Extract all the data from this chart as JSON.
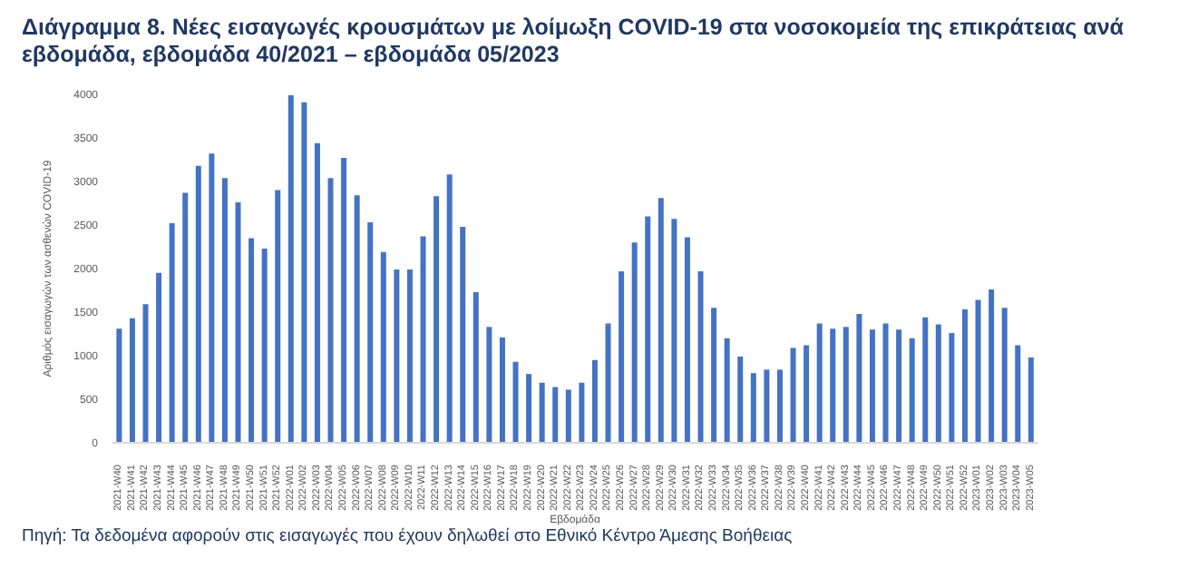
{
  "chart_data": {
    "type": "bar",
    "title": "Διάγραμμα 8. Νέες εισαγωγές κρουσμάτων με λοίμωξη COVID-19 στα νοσοκομεία της επικράτειας ανά εβδομάδα, εβδομάδα 40/2021 – εβδομάδα 05/2023",
    "xlabel": "Εβδομάδα",
    "ylabel": "Αριθμός εισαγωγών των ασθενών COVID-19",
    "annotations": [
      "Πηγή: Τα δεδομένα αφορούν στις εισαγωγές που έχουν δηλωθεί στο Εθνικό Κέντρο Άμεσης Βοήθειας"
    ],
    "categories": [
      "2021-W40",
      "2021-W41",
      "2021-W42",
      "2021-W43",
      "2021-W44",
      "2021-W45",
      "2021-W46",
      "2021-W47",
      "2021-W48",
      "2021-W49",
      "2021-W50",
      "2021-W51",
      "2021-W52",
      "2022-W01",
      "2022-W02",
      "2022-W03",
      "2022-W04",
      "2022-W05",
      "2022-W06",
      "2022-W07",
      "2022-W08",
      "2022-W09",
      "2022-W10",
      "2022-W11",
      "2022-W12",
      "2022-W13",
      "2022-W14",
      "2022-W15",
      "2022-W16",
      "2022-W17",
      "2022-W18",
      "2022-W19",
      "2022-W20",
      "2022-W21",
      "2022-W22",
      "2022-W23",
      "2022-W24",
      "2022-W25",
      "2022-W26",
      "2022-W27",
      "2022-W28",
      "2022-W29",
      "2022-W30",
      "2022-W31",
      "2022-W32",
      "2022-W33",
      "2022-W34",
      "2022-W35",
      "2022-W36",
      "2022-W37",
      "2022-W38",
      "2022-W39",
      "2022-W40",
      "2022-W41",
      "2022-W42",
      "2022-W43",
      "2022-W44",
      "2022-W45",
      "2022-W46",
      "2022-W47",
      "2022-W48",
      "2022-W49",
      "2022-W50",
      "2022-W51",
      "2022-W52",
      "2023-W01",
      "2023-W02",
      "2023-W03",
      "2023-W04",
      "2023-W05"
    ],
    "values": [
      1310,
      1430,
      1590,
      1950,
      2520,
      2870,
      3180,
      3320,
      3040,
      2760,
      2350,
      2230,
      2900,
      3990,
      3910,
      3440,
      3040,
      3270,
      2840,
      2530,
      2190,
      1990,
      1990,
      2370,
      2830,
      3080,
      2480,
      1730,
      1330,
      1210,
      930,
      790,
      690,
      640,
      610,
      690,
      950,
      1370,
      1970,
      2300,
      2600,
      2810,
      2570,
      2360,
      1970,
      1550,
      1200,
      990,
      800,
      840,
      840,
      1090,
      1120,
      1370,
      1310,
      1330,
      1480,
      1300,
      1370,
      1300,
      1200,
      1440,
      1360,
      1260,
      1530,
      1640,
      1760,
      1550,
      1120,
      980
    ],
    "color": "#4472c4",
    "ylim": [
      0,
      4000
    ],
    "yticks": [
      0,
      500,
      1000,
      1500,
      2000,
      2500,
      3000,
      3500,
      4000
    ],
    "grid": false
  }
}
